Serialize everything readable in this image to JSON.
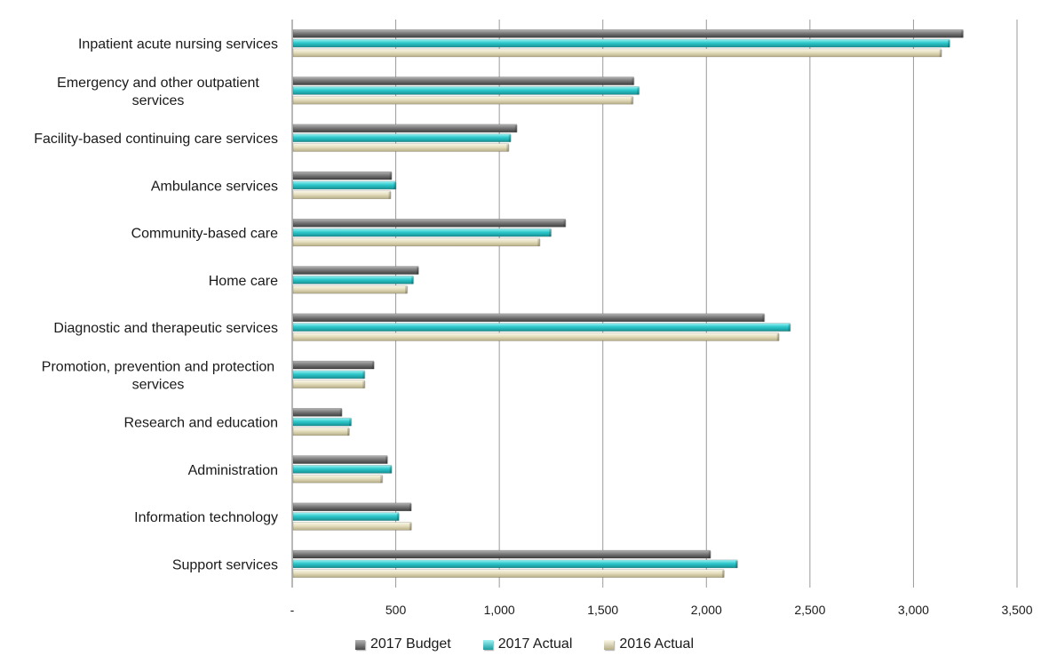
{
  "chart_data": {
    "type": "bar",
    "orientation": "horizontal",
    "categories": [
      "Inpatient acute nursing services",
      "Emergency and other outpatient services",
      "Facility-based continuing care services",
      "Ambulance services",
      "Community-based care",
      "Home care",
      "Diagnostic and therapeutic services",
      "Promotion, prevention and protection services",
      "Research and education",
      "Administration",
      "Information technology",
      "Support services"
    ],
    "category_lines": [
      [
        "Inpatient acute nursing services"
      ],
      [
        "Emergency and other outpatient",
        "services"
      ],
      [
        "Facility-based continuing care services"
      ],
      [
        "Ambulance services"
      ],
      [
        "Community-based care"
      ],
      [
        "Home care"
      ],
      [
        "Diagnostic and therapeutic services"
      ],
      [
        "Promotion, prevention and protection",
        "services"
      ],
      [
        "Research and education"
      ],
      [
        "Administration"
      ],
      [
        "Information technology"
      ],
      [
        "Support services"
      ]
    ],
    "series": [
      {
        "name": "2017 Budget",
        "color": "#7a7a7a",
        "values": [
          3235,
          1645,
          1080,
          475,
          1315,
          605,
          2275,
          390,
          235,
          455,
          570,
          2015
        ]
      },
      {
        "name": "2017 Actual",
        "color": "#2ec9cc",
        "values": [
          3170,
          1670,
          1050,
          495,
          1245,
          580,
          2400,
          345,
          280,
          475,
          510,
          2145
        ]
      },
      {
        "name": "2016 Actual",
        "color": "#e6dfbf",
        "values": [
          3130,
          1640,
          1040,
          470,
          1190,
          550,
          2345,
          345,
          270,
          430,
          570,
          2080
        ]
      }
    ],
    "xlim": [
      0,
      3500
    ],
    "xticks": [
      "-",
      "500",
      "1,000",
      "1,500",
      "2,000",
      "2,500",
      "3,000",
      "3,500"
    ],
    "grid": "vertical",
    "legend_position": "bottom"
  }
}
